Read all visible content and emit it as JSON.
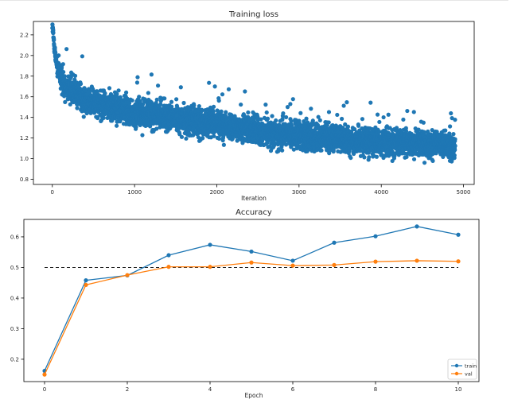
{
  "chart_data": [
    {
      "type": "scatter",
      "title": "Training loss",
      "xlabel": "Iteration",
      "ylabel": "",
      "xlim": [
        -230,
        5130
      ],
      "ylim": [
        0.75,
        2.33
      ],
      "xticks": [
        0,
        1000,
        2000,
        3000,
        4000,
        5000
      ],
      "xtick_labels": [
        "0",
        "1000",
        "2000",
        "3000",
        "4000",
        "5000"
      ],
      "yticks": [
        0.8,
        1.0,
        1.2,
        1.4,
        1.6,
        1.8,
        2.0,
        2.2
      ],
      "ytick_labels": [
        "0.8",
        "1.0",
        "1.2",
        "1.4",
        "1.6",
        "1.8",
        "2.0",
        "2.2"
      ],
      "grid": false,
      "n_points": 4900,
      "color": "#1f77b4",
      "trend_x": [
        0,
        10,
        20,
        40,
        60,
        100,
        150,
        250,
        400,
        600,
        1000,
        1500,
        2000,
        2500,
        3000,
        3500,
        4000,
        4500,
        4900
      ],
      "trend_y": [
        2.29,
        2.22,
        2.12,
        1.98,
        1.88,
        1.78,
        1.72,
        1.65,
        1.58,
        1.52,
        1.45,
        1.39,
        1.33,
        1.27,
        1.22,
        1.19,
        1.16,
        1.14,
        1.13
      ],
      "spread": 0.1
    },
    {
      "type": "line",
      "title": "Accuracy",
      "xlabel": "Epoch",
      "ylabel": "",
      "xlim": [
        -0.5,
        10.5
      ],
      "ylim": [
        0.127,
        0.657
      ],
      "xticks": [
        0,
        2,
        4,
        6,
        8,
        10
      ],
      "xtick_labels": [
        "0",
        "2",
        "4",
        "6",
        "8",
        "10"
      ],
      "yticks": [
        0.2,
        0.3,
        0.4,
        0.5,
        0.6
      ],
      "ytick_labels": [
        "0.2",
        "0.3",
        "0.4",
        "0.5",
        "0.6"
      ],
      "grid": false,
      "legend_position": "bottom-right",
      "x": [
        0,
        1,
        2,
        3,
        4,
        5,
        6,
        7,
        8,
        9,
        10
      ],
      "series": [
        {
          "name": "train",
          "color": "#1f77b4",
          "values": [
            0.162,
            0.458,
            0.474,
            0.54,
            0.574,
            0.552,
            0.522,
            0.581,
            0.602,
            0.634,
            0.607
          ]
        },
        {
          "name": "val",
          "color": "#ff7f0e",
          "values": [
            0.15,
            0.443,
            0.475,
            0.502,
            0.502,
            0.516,
            0.506,
            0.508,
            0.519,
            0.522,
            0.52
          ]
        }
      ],
      "reference_line": {
        "y": 0.5,
        "x_range": [
          0,
          10
        ],
        "style": "dashed",
        "color": "#000000"
      }
    }
  ]
}
